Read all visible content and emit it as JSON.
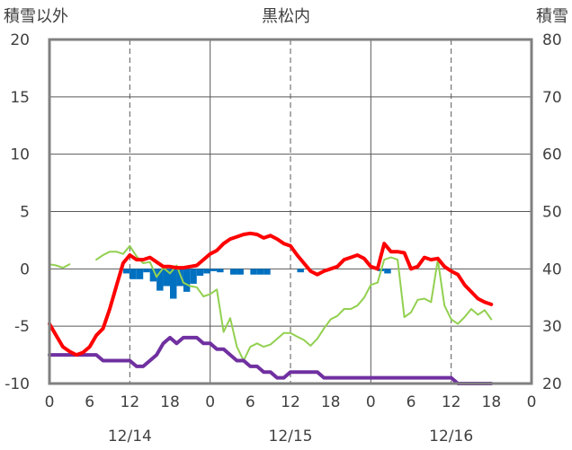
{
  "chart_data": {
    "type": "line",
    "title": "黒松内",
    "y_left_label": "積雪以外",
    "y_right_label": "積雪",
    "ylim_left": [
      -10,
      20
    ],
    "ylim_right": [
      20,
      80
    ],
    "y_left_ticks": [
      "20",
      "15",
      "10",
      "5",
      "0",
      "-5",
      "-10"
    ],
    "y_right_ticks": [
      "80",
      "70",
      "60",
      "50",
      "40",
      "30",
      "20"
    ],
    "x_hour_ticks": [
      "0",
      "6",
      "12",
      "18",
      "0",
      "6",
      "12",
      "18",
      "0",
      "6",
      "12",
      "18",
      "0"
    ],
    "x_date_labels": [
      "12/14",
      "12/15",
      "12/16"
    ],
    "xlim_hours": [
      0,
      72
    ],
    "grid": true,
    "colors": {
      "temperature": "#ff0000",
      "precipitation": "#0070c0",
      "wind": "#92d050",
      "snow_depth": "#7030a0",
      "frame": "#808080",
      "grid": "#595959"
    },
    "series": [
      {
        "key": "temperature",
        "axis": "left",
        "points": [
          [
            0,
            -4.8
          ],
          [
            1,
            -5.8
          ],
          [
            2,
            -6.8
          ],
          [
            3,
            -7.2
          ],
          [
            4,
            -7.5
          ],
          [
            5,
            -7.3
          ],
          [
            6,
            -6.8
          ],
          [
            7,
            -5.8
          ],
          [
            8,
            -5.2
          ],
          [
            9,
            -3.5
          ],
          [
            10,
            -1.5
          ],
          [
            11,
            0.5
          ],
          [
            12,
            1.2
          ],
          [
            13,
            0.8
          ],
          [
            14,
            0.8
          ],
          [
            15,
            1.0
          ],
          [
            16,
            0.6
          ],
          [
            17,
            0.2
          ],
          [
            18,
            0.2
          ],
          [
            19,
            0.1
          ],
          [
            20,
            0.1
          ],
          [
            21,
            0.2
          ],
          [
            22,
            0.3
          ],
          [
            23,
            0.8
          ],
          [
            24,
            1.3
          ],
          [
            25,
            1.6
          ],
          [
            26,
            2.2
          ],
          [
            27,
            2.6
          ],
          [
            28,
            2.8
          ],
          [
            29,
            3.0
          ],
          [
            30,
            3.1
          ],
          [
            31,
            3.0
          ],
          [
            32,
            2.7
          ],
          [
            33,
            2.9
          ],
          [
            34,
            2.6
          ],
          [
            35,
            2.2
          ],
          [
            36,
            2.0
          ],
          [
            37,
            1.2
          ],
          [
            38,
            0.5
          ],
          [
            39,
            -0.2
          ],
          [
            40,
            -0.5
          ],
          [
            41,
            -0.2
          ],
          [
            42,
            0.0
          ],
          [
            43,
            0.2
          ],
          [
            44,
            0.8
          ],
          [
            45,
            1.0
          ],
          [
            46,
            1.2
          ],
          [
            47,
            0.9
          ],
          [
            48,
            0.2
          ],
          [
            49,
            0.0
          ],
          [
            50,
            2.2
          ],
          [
            51,
            1.5
          ],
          [
            52,
            1.5
          ],
          [
            53,
            1.4
          ],
          [
            54,
            0.0
          ],
          [
            55,
            0.2
          ],
          [
            56,
            1.0
          ],
          [
            57,
            0.8
          ],
          [
            58,
            0.9
          ],
          [
            59,
            0.2
          ],
          [
            60,
            -0.2
          ],
          [
            61,
            -0.5
          ],
          [
            62,
            -1.4
          ],
          [
            63,
            -2.0
          ],
          [
            64,
            -2.6
          ],
          [
            65,
            -2.9
          ],
          [
            66,
            -3.1
          ]
        ]
      },
      {
        "key": "wind",
        "axis": "left",
        "segments": [
          [
            [
              0,
              0.4
            ],
            [
              1,
              0.3
            ],
            [
              2,
              0.1
            ],
            [
              3,
              0.4
            ]
          ],
          [
            [
              7,
              0.8
            ],
            [
              8,
              1.2
            ],
            [
              9,
              1.5
            ],
            [
              10,
              1.5
            ],
            [
              11,
              1.3
            ],
            [
              12,
              2.0
            ],
            [
              13,
              1.1
            ],
            [
              14,
              0.5
            ],
            [
              15,
              0.6
            ],
            [
              16,
              -0.7
            ],
            [
              17,
              0.1
            ],
            [
              18,
              -0.4
            ],
            [
              19,
              0.3
            ],
            [
              20,
              -1.2
            ],
            [
              21,
              -1.5
            ],
            [
              22,
              -1.6
            ],
            [
              23,
              -2.4
            ],
            [
              24,
              -2.2
            ],
            [
              25,
              -1.8
            ],
            [
              26,
              -5.5
            ],
            [
              27,
              -4.3
            ],
            [
              28,
              -6.8
            ],
            [
              29,
              -8.0
            ],
            [
              30,
              -6.8
            ],
            [
              31,
              -6.5
            ],
            [
              32,
              -6.8
            ],
            [
              33,
              -6.6
            ],
            [
              34,
              -6.1
            ],
            [
              35,
              -5.6
            ],
            [
              36,
              -5.6
            ],
            [
              37,
              -5.9
            ],
            [
              38,
              -6.2
            ],
            [
              39,
              -6.7
            ],
            [
              40,
              -6.1
            ],
            [
              41,
              -5.2
            ],
            [
              42,
              -4.4
            ],
            [
              43,
              -4.1
            ],
            [
              44,
              -3.5
            ],
            [
              45,
              -3.5
            ],
            [
              46,
              -3.2
            ],
            [
              47,
              -2.5
            ],
            [
              48,
              -1.4
            ],
            [
              49,
              -1.2
            ],
            [
              50,
              0.8
            ],
            [
              51,
              1.0
            ],
            [
              52,
              0.8
            ],
            [
              53,
              -4.2
            ],
            [
              54,
              -3.8
            ],
            [
              55,
              -2.7
            ],
            [
              56,
              -2.6
            ],
            [
              57,
              -2.9
            ],
            [
              58,
              0.8
            ],
            [
              59,
              -3.2
            ],
            [
              60,
              -4.4
            ],
            [
              61,
              -4.8
            ],
            [
              62,
              -4.2
            ],
            [
              63,
              -3.5
            ],
            [
              64,
              -4.0
            ],
            [
              65,
              -3.6
            ],
            [
              66,
              -4.4
            ]
          ]
        ]
      },
      {
        "key": "snow_depth",
        "axis": "right",
        "points": [
          [
            0,
            25
          ],
          [
            1,
            25
          ],
          [
            2,
            25
          ],
          [
            3,
            25
          ],
          [
            4,
            25
          ],
          [
            5,
            25
          ],
          [
            6,
            25
          ],
          [
            7,
            25
          ],
          [
            8,
            24
          ],
          [
            9,
            24
          ],
          [
            10,
            24
          ],
          [
            11,
            24
          ],
          [
            12,
            24
          ],
          [
            13,
            23
          ],
          [
            14,
            23
          ],
          [
            15,
            24
          ],
          [
            16,
            25
          ],
          [
            17,
            27
          ],
          [
            18,
            28
          ],
          [
            19,
            27
          ],
          [
            20,
            28
          ],
          [
            21,
            28
          ],
          [
            22,
            28
          ],
          [
            23,
            27
          ],
          [
            24,
            27
          ],
          [
            25,
            26
          ],
          [
            26,
            26
          ],
          [
            27,
            25
          ],
          [
            28,
            24
          ],
          [
            29,
            24
          ],
          [
            30,
            23
          ],
          [
            31,
            23
          ],
          [
            32,
            22
          ],
          [
            33,
            22
          ],
          [
            34,
            21
          ],
          [
            35,
            21
          ],
          [
            36,
            22
          ],
          [
            37,
            22
          ],
          [
            38,
            22
          ],
          [
            39,
            22
          ],
          [
            40,
            22
          ],
          [
            41,
            21
          ],
          [
            42,
            21
          ],
          [
            43,
            21
          ],
          [
            44,
            21
          ],
          [
            45,
            21
          ],
          [
            46,
            21
          ],
          [
            47,
            21
          ],
          [
            48,
            21
          ],
          [
            49,
            21
          ],
          [
            50,
            21
          ],
          [
            51,
            21
          ],
          [
            52,
            21
          ],
          [
            53,
            21
          ],
          [
            54,
            21
          ],
          [
            55,
            21
          ],
          [
            56,
            21
          ],
          [
            57,
            21
          ],
          [
            58,
            21
          ],
          [
            59,
            21
          ],
          [
            60,
            21
          ],
          [
            61,
            20
          ],
          [
            62,
            20
          ],
          [
            63,
            20
          ],
          [
            64,
            20
          ],
          [
            65,
            20
          ],
          [
            66,
            20
          ]
        ]
      },
      {
        "key": "precipitation",
        "axis": "left",
        "type": "bar",
        "bars": [
          [
            11.5,
            -0.4
          ],
          [
            12.5,
            -0.9
          ],
          [
            13.5,
            -0.9
          ],
          [
            14.5,
            -0.3
          ],
          [
            15.5,
            -1.1
          ],
          [
            16.5,
            -1.9
          ],
          [
            17.5,
            -1.5
          ],
          [
            18.5,
            -2.6
          ],
          [
            19.5,
            -1.5
          ],
          [
            20.5,
            -2.0
          ],
          [
            21.5,
            -1.3
          ],
          [
            22.5,
            -0.6
          ],
          [
            23.5,
            -0.4
          ],
          [
            24.5,
            -0.2
          ],
          [
            25.5,
            -0.3
          ],
          [
            27.5,
            -0.5
          ],
          [
            28.5,
            -0.5
          ],
          [
            30.5,
            -0.5
          ],
          [
            31.5,
            -0.5
          ],
          [
            32.5,
            -0.5
          ],
          [
            37.5,
            -0.3
          ],
          [
            49.5,
            -0.2
          ],
          [
            50.5,
            -0.4
          ]
        ]
      }
    ]
  }
}
